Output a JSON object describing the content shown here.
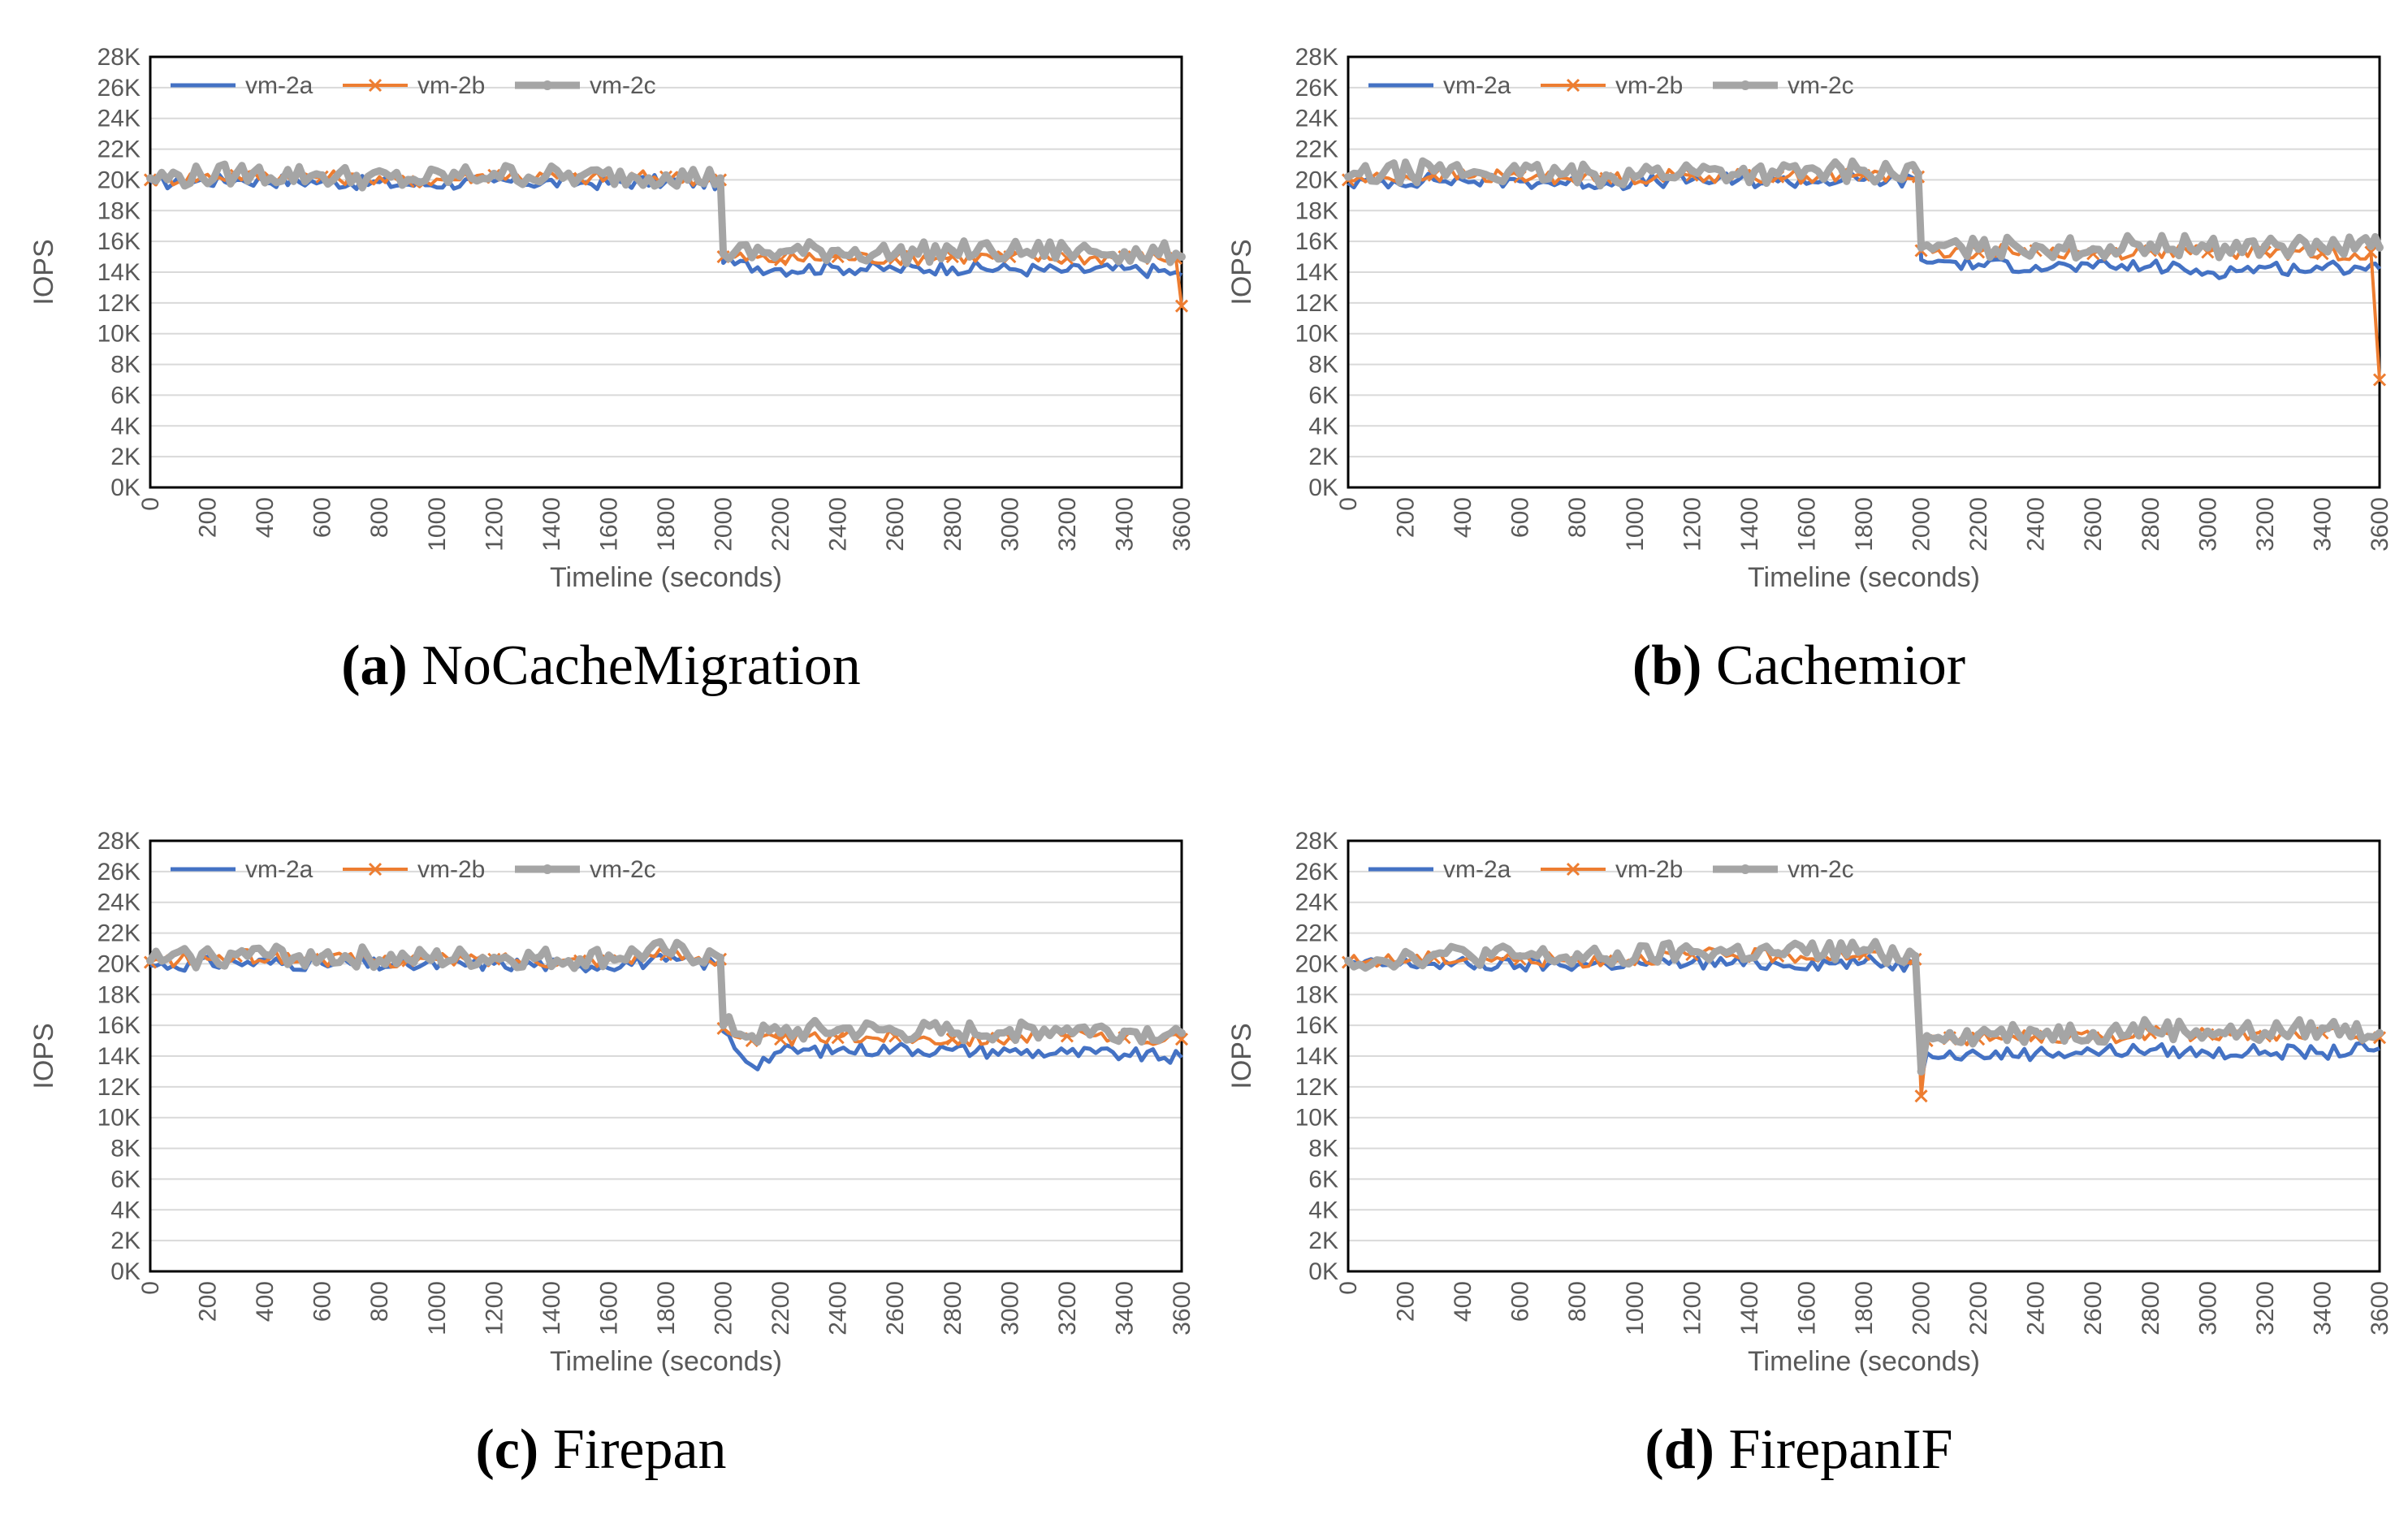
{
  "colors": {
    "vm2a": "#4472C4",
    "vm2b": "#ED7D31",
    "vm2c": "#A5A5A5",
    "grid": "#D9D9D9",
    "axis": "#000000"
  },
  "chart_data": [
    {
      "type": "line",
      "caption_letter": "(a)",
      "caption_name": "NoCacheMigration",
      "xlabel": "Timeline (seconds)",
      "ylabel": "IOPS",
      "xlim": [
        0,
        3600
      ],
      "ylim": [
        0,
        28000
      ],
      "x_ticks": [
        "0",
        "200",
        "400",
        "600",
        "800",
        "1000",
        "1200",
        "1400",
        "1600",
        "1800",
        "2000",
        "2200",
        "2400",
        "2600",
        "2800",
        "3000",
        "3200",
        "3400",
        "3600"
      ],
      "y_ticks": [
        "0K",
        "2K",
        "4K",
        "6K",
        "8K",
        "10K",
        "12K",
        "14K",
        "16K",
        "18K",
        "20K",
        "22K",
        "24K",
        "26K",
        "28K"
      ],
      "x": [
        0,
        300,
        600,
        900,
        1200,
        1500,
        1800,
        1990,
        2000,
        2200,
        2400,
        2600,
        2800,
        3000,
        3200,
        3400,
        3580,
        3600
      ],
      "series": [
        {
          "name": "vm-2a",
          "values": [
            19800,
            20000,
            19900,
            19700,
            19900,
            19800,
            19900,
            19800,
            14600,
            14200,
            14300,
            14200,
            14300,
            14200,
            14100,
            14200,
            14000,
            13800
          ]
        },
        {
          "name": "vm-2b",
          "values": [
            20000,
            20300,
            20200,
            19900,
            20300,
            20100,
            20200,
            20000,
            15000,
            14800,
            15000,
            14900,
            15000,
            15000,
            14900,
            15000,
            14900,
            11800
          ]
        },
        {
          "name": "vm-2c",
          "values": [
            20100,
            20400,
            20300,
            20000,
            20400,
            20200,
            20300,
            20100,
            15200,
            15300,
            15400,
            15200,
            15400,
            15300,
            15400,
            15300,
            15200,
            15000
          ]
        }
      ]
    },
    {
      "type": "line",
      "caption_letter": "(b)",
      "caption_name": "Cachemior",
      "xlabel": "Timeline (seconds)",
      "ylabel": "IOPS",
      "xlim": [
        0,
        3600
      ],
      "ylim": [
        0,
        28000
      ],
      "x_ticks": [
        "0",
        "200",
        "400",
        "600",
        "800",
        "1000",
        "1200",
        "1400",
        "1600",
        "1800",
        "2000",
        "2200",
        "2400",
        "2600",
        "2800",
        "3000",
        "3200",
        "3400",
        "3600"
      ],
      "y_ticks": [
        "0K",
        "2K",
        "4K",
        "6K",
        "8K",
        "10K",
        "12K",
        "14K",
        "16K",
        "18K",
        "20K",
        "22K",
        "24K",
        "26K",
        "28K"
      ],
      "x": [
        0,
        300,
        600,
        900,
        1200,
        1500,
        1800,
        1990,
        2000,
        2200,
        2400,
        2600,
        2800,
        3000,
        3200,
        3400,
        3570,
        3600
      ],
      "series": [
        {
          "name": "vm-2a",
          "values": [
            19800,
            20000,
            19900,
            19800,
            20000,
            19900,
            20000,
            19900,
            14800,
            14500,
            14400,
            14300,
            14400,
            14000,
            14300,
            14200,
            14500,
            14200
          ]
        },
        {
          "name": "vm-2b",
          "values": [
            20000,
            20300,
            20200,
            20100,
            20300,
            20200,
            20300,
            20200,
            15400,
            15300,
            15400,
            15200,
            15400,
            15300,
            15300,
            15200,
            15300,
            7000
          ]
        },
        {
          "name": "vm-2c",
          "values": [
            20200,
            20600,
            20400,
            20300,
            20600,
            20400,
            20600,
            20400,
            15600,
            15500,
            15700,
            15500,
            15800,
            15600,
            15700,
            15600,
            15700,
            15600
          ]
        }
      ]
    },
    {
      "type": "line",
      "caption_letter": "(c)",
      "caption_name": "Firepan",
      "xlabel": "Timeline (seconds)",
      "ylabel": "IOPS",
      "xlim": [
        0,
        3600
      ],
      "ylim": [
        0,
        28000
      ],
      "x_ticks": [
        "0",
        "200",
        "400",
        "600",
        "800",
        "1000",
        "1200",
        "1400",
        "1600",
        "1800",
        "2000",
        "2200",
        "2400",
        "2600",
        "2800",
        "3000",
        "3200",
        "3400",
        "3600"
      ],
      "y_ticks": [
        "0K",
        "2K",
        "4K",
        "6K",
        "8K",
        "10K",
        "12K",
        "14K",
        "16K",
        "18K",
        "20K",
        "22K",
        "24K",
        "26K",
        "28K"
      ],
      "x": [
        0,
        300,
        600,
        900,
        1200,
        1500,
        1800,
        1990,
        2000,
        2100,
        2200,
        2400,
        2600,
        2800,
        3000,
        3200,
        3400,
        3600
      ],
      "series": [
        {
          "name": "vm-2a",
          "values": [
            19900,
            20100,
            20000,
            19900,
            20000,
            19900,
            20200,
            20000,
            15600,
            13400,
            14300,
            14400,
            14500,
            14400,
            14300,
            14200,
            14100,
            13900
          ]
        },
        {
          "name": "vm-2b",
          "values": [
            20100,
            20500,
            20300,
            20200,
            20300,
            20200,
            20600,
            20300,
            15800,
            15000,
            15100,
            15200,
            15300,
            15100,
            15200,
            15300,
            15200,
            15100
          ]
        },
        {
          "name": "vm-2c",
          "values": [
            20200,
            20600,
            20500,
            20300,
            20400,
            20300,
            20800,
            20400,
            16000,
            15300,
            15500,
            15700,
            15600,
            15500,
            15700,
            15800,
            15600,
            15500
          ]
        }
      ]
    },
    {
      "type": "line",
      "caption_letter": "(d)",
      "caption_name": "FirepanIF",
      "xlabel": "Timeline (seconds)",
      "ylabel": "IOPS",
      "xlim": [
        0,
        3600
      ],
      "ylim": [
        0,
        28000
      ],
      "x_ticks": [
        "0",
        "200",
        "400",
        "600",
        "800",
        "1000",
        "1200",
        "1400",
        "1600",
        "1800",
        "2000",
        "2200",
        "2400",
        "2600",
        "2800",
        "3000",
        "3200",
        "3400",
        "3600"
      ],
      "y_ticks": [
        "0K",
        "2K",
        "4K",
        "6K",
        "8K",
        "10K",
        "12K",
        "14K",
        "16K",
        "18K",
        "20K",
        "22K",
        "24K",
        "26K",
        "28K"
      ],
      "x": [
        0,
        300,
        600,
        900,
        1200,
        1500,
        1800,
        1980,
        2000,
        2020,
        2100,
        2200,
        2400,
        2600,
        2800,
        3000,
        3200,
        3400,
        3600
      ],
      "series": [
        {
          "name": "vm-2a",
          "values": [
            19900,
            20000,
            19900,
            20000,
            20100,
            20000,
            20100,
            19900,
            12500,
            14200,
            14300,
            14100,
            14200,
            14300,
            14400,
            14200,
            14300,
            14200,
            14500
          ]
        },
        {
          "name": "vm-2b",
          "values": [
            20100,
            20400,
            20300,
            20200,
            20600,
            20500,
            20600,
            20300,
            11400,
            15000,
            15200,
            15100,
            15300,
            15200,
            15500,
            15400,
            15300,
            15500,
            15200
          ]
        },
        {
          "name": "vm-2c",
          "values": [
            20200,
            20600,
            20500,
            20300,
            20800,
            20700,
            20900,
            20500,
            13000,
            15300,
            15500,
            15400,
            15600,
            15500,
            15800,
            15600,
            15500,
            15800,
            15500
          ]
        }
      ]
    }
  ]
}
